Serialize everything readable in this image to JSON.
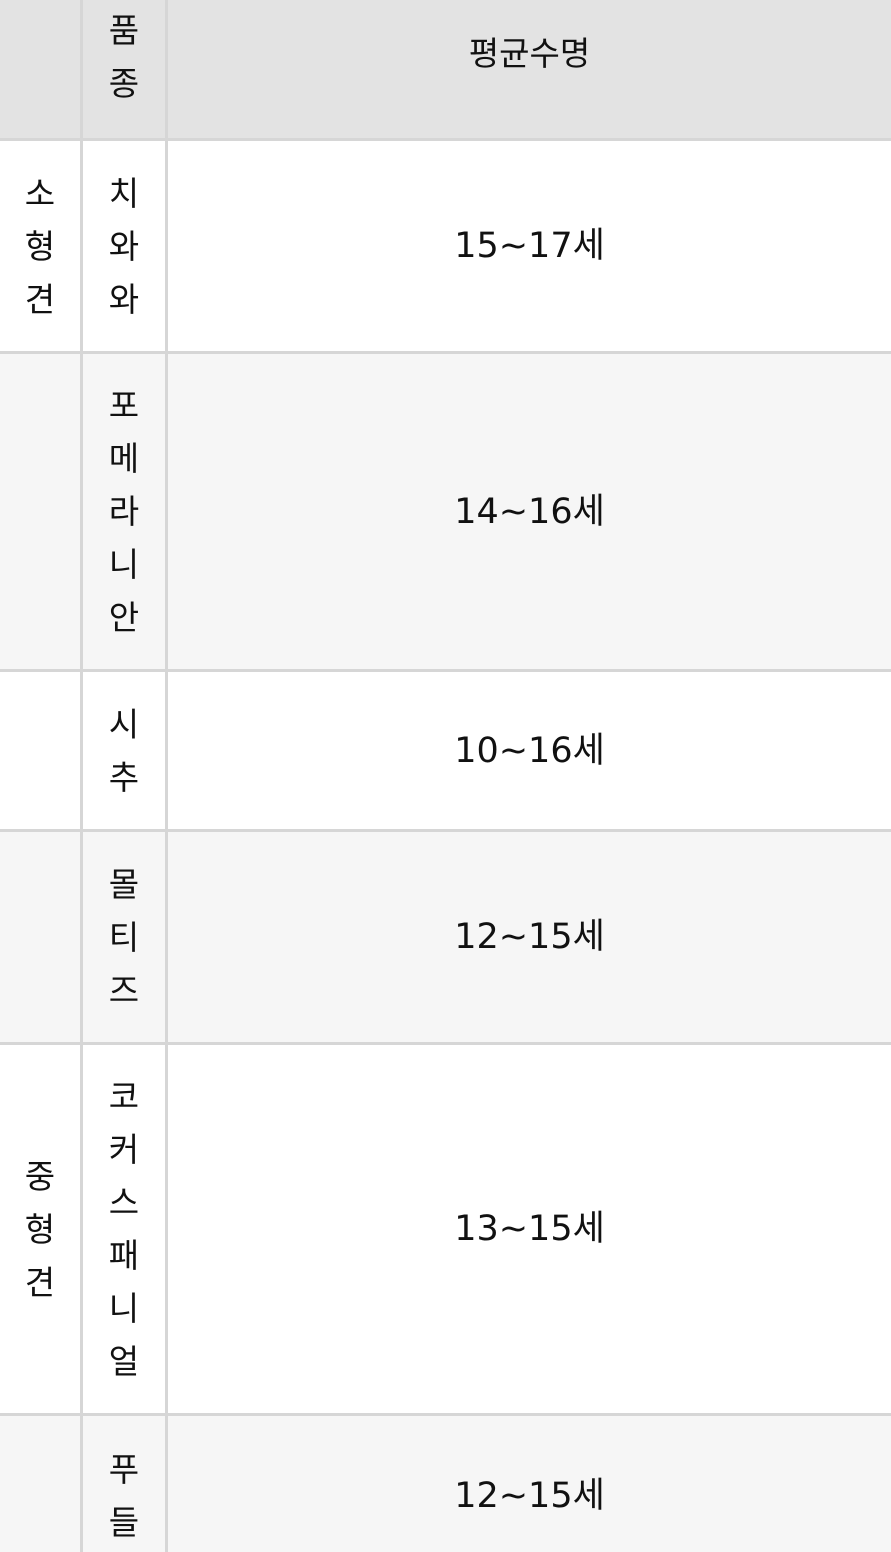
{
  "header": {
    "col_category": "",
    "col_breed": "품종",
    "col_lifespan": "평균수명"
  },
  "rows": [
    {
      "category": "소형견",
      "breed": "치와와",
      "lifespan": "15~17세"
    },
    {
      "category": "",
      "breed": "포메라니안",
      "lifespan": "14~16세"
    },
    {
      "category": "",
      "breed": "시추",
      "lifespan": "10~16세"
    },
    {
      "category": "",
      "breed": "몰티즈",
      "lifespan": "12~15세"
    },
    {
      "category": "중형견",
      "breed": "코커스패니얼",
      "lifespan": "13~15세"
    },
    {
      "category": "",
      "breed": "푸들",
      "lifespan": "12~15세"
    }
  ]
}
